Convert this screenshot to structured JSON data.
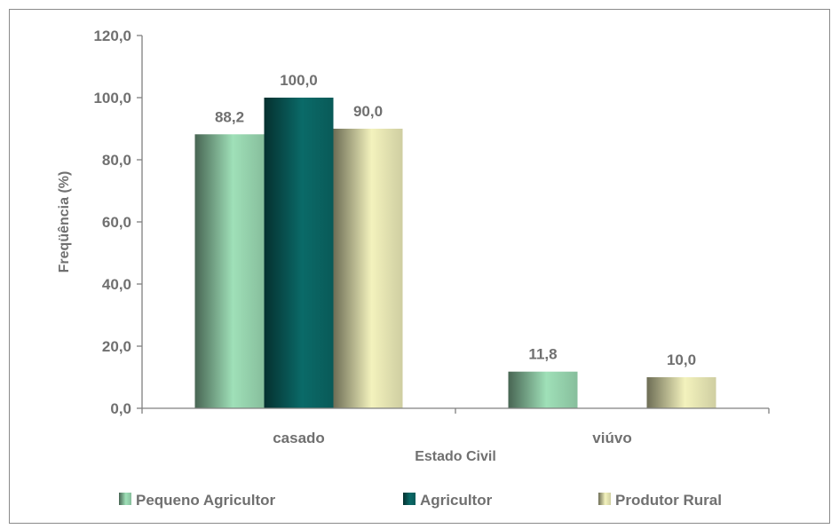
{
  "chart_data": {
    "type": "bar",
    "xlabel": "Estado Civil",
    "ylabel": "Freqüência (%)",
    "categories": [
      "casado",
      "viúvo"
    ],
    "ylim": [
      0,
      120
    ],
    "yticks": [
      "0,0",
      "20,0",
      "40,0",
      "60,0",
      "80,0",
      "100,0",
      "120,0"
    ],
    "grid": false,
    "legend_position": "bottom",
    "series": [
      {
        "name": "Pequeno Agricultor",
        "values": [
          88.2,
          11.8
        ],
        "labels": [
          "88,2",
          "11,8"
        ],
        "color": "#9fe0b8"
      },
      {
        "name": "Agricultor",
        "values": [
          100.0,
          null
        ],
        "labels": [
          "100,0",
          ""
        ],
        "color": "#0a6a68"
      },
      {
        "name": "Produtor Rural",
        "values": [
          90.0,
          10.0
        ],
        "labels": [
          "90,0",
          "10,0"
        ],
        "color": "#f3f2bd"
      }
    ]
  }
}
